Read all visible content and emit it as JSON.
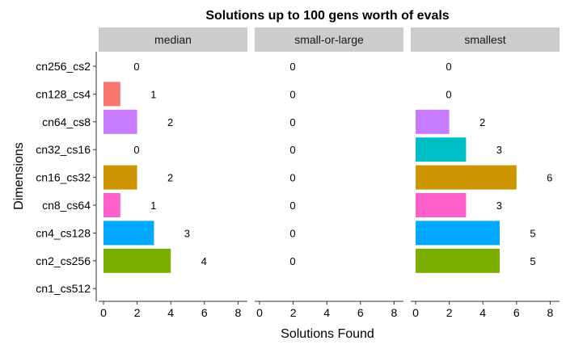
{
  "chart_data": {
    "type": "bar",
    "orientation": "horizontal",
    "title": "Solutions up to 100 gens worth of evals",
    "xlabel": "Solutions Found",
    "ylabel": "Dimensions",
    "xlim": [
      0,
      8
    ],
    "x_ticks": [
      "0",
      "2",
      "4",
      "6",
      "8"
    ],
    "grid": false,
    "categories": [
      "cn256_cs2",
      "cn128_cs4",
      "cn64_cs8",
      "cn32_cs16",
      "cn16_cs32",
      "cn8_cs64",
      "cn4_cs128",
      "cn2_cs256",
      "cn1_cs512"
    ],
    "colors": {
      "cn128_cs4": "#F8766D",
      "cn64_cs8": "#C77CFF",
      "cn32_cs16": "#00BFC4",
      "cn16_cs32": "#CD9600",
      "cn8_cs64": "#FF61CC",
      "cn4_cs128": "#00A9FF",
      "cn2_cs256": "#7CAE00"
    },
    "facet_strip_color": "#CCCCCC",
    "panels": [
      {
        "name": "median",
        "values": [
          0,
          1,
          2,
          0,
          2,
          1,
          3,
          4,
          null
        ],
        "labels": [
          "0",
          "1",
          "2",
          "0",
          "2",
          "1",
          "3",
          "4",
          ""
        ]
      },
      {
        "name": "small-or-large",
        "values": [
          0,
          0,
          0,
          0,
          0,
          0,
          0,
          0,
          null
        ],
        "labels": [
          "0",
          "0",
          "0",
          "0",
          "0",
          "0",
          "0",
          "0",
          ""
        ]
      },
      {
        "name": "smallest",
        "values": [
          0,
          0,
          2,
          3,
          6,
          3,
          5,
          5,
          null
        ],
        "labels": [
          "0",
          "0",
          "2",
          "3",
          "6",
          "3",
          "5",
          "5",
          ""
        ]
      }
    ]
  }
}
